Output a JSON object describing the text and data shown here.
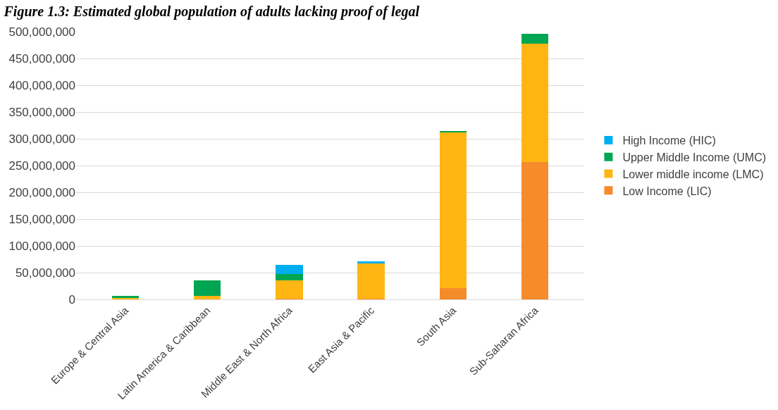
{
  "chart_data": {
    "type": "bar",
    "title": "Figure 1.3: Estimated global population of adults lacking proof of legal",
    "categories": [
      "Europe & Central Asia",
      "Latin America & Caribbean",
      "Middle East & North Africa",
      "East Asia & Pacific",
      "South Asia",
      "Sub-Saharan Africa"
    ],
    "stacked": true,
    "series": [
      {
        "name": "Low Income (LIC)",
        "color": "#f68b2c",
        "values": [
          0,
          0,
          1000000,
          1000000,
          21000000,
          256000000
        ]
      },
      {
        "name": "Lower middle income (LMC)",
        "color": "#ffb613",
        "values": [
          2000000,
          6000000,
          35000000,
          66000000,
          292000000,
          221000000
        ]
      },
      {
        "name": "Upper Middle Income (UMC)",
        "color": "#00a651",
        "values": [
          4000000,
          29000000,
          11000000,
          0,
          2000000,
          19000000
        ]
      },
      {
        "name": "High Income (HIC)",
        "color": "#00aeef",
        "values": [
          0,
          0,
          18000000,
          4000000,
          0,
          0
        ]
      }
    ],
    "ylim": [
      0,
      500000000
    ],
    "yticks": [
      {
        "value": 0,
        "label": "0"
      },
      {
        "value": 50000000,
        "label": "50,000,000"
      },
      {
        "value": 100000000,
        "label": "100,000,000"
      },
      {
        "value": 150000000,
        "label": "150,000,000"
      },
      {
        "value": 200000000,
        "label": "200,000,000"
      },
      {
        "value": 250000000,
        "label": "250,000,000"
      },
      {
        "value": 300000000,
        "label": "300,000,000"
      },
      {
        "value": 350000000,
        "label": "350,000,000"
      },
      {
        "value": 400000000,
        "label": "400,000,000"
      },
      {
        "value": 450000000,
        "label": "450,000,000"
      },
      {
        "value": 500000000,
        "label": "500,000,000"
      }
    ],
    "grid": "y",
    "legend": "right"
  }
}
